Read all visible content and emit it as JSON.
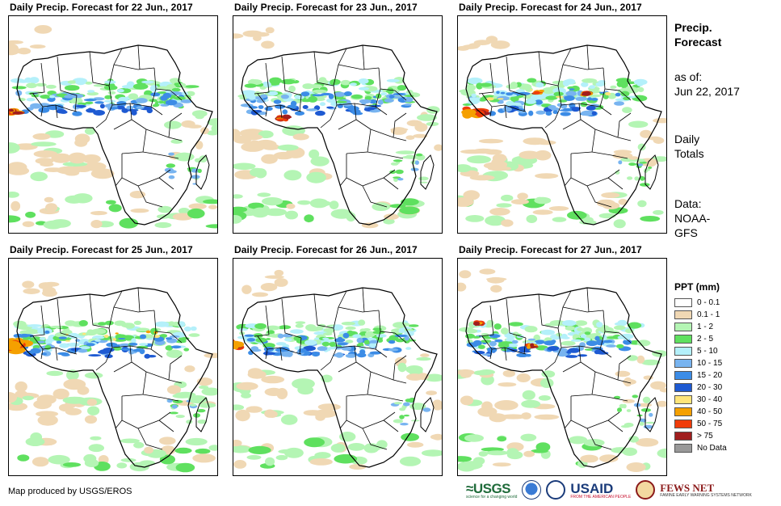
{
  "colors": {
    "p0": "#ffffff",
    "p1": "#f0d8b4",
    "p2": "#b4f5b4",
    "p3": "#5fe05f",
    "p4": "#b4f0fa",
    "p5": "#78b4f0",
    "p6": "#3c8ce6",
    "p7": "#1e5ad2",
    "p8": "#ffe57a",
    "p9": "#f5a000",
    "p10": "#f03c0a",
    "p11": "#a01e1e",
    "nodata": "#999999"
  },
  "panels": [
    {
      "title": "Daily Precip. Forecast for 22 Jun., 2017"
    },
    {
      "title": "Daily Precip. Forecast for 23 Jun., 2017"
    },
    {
      "title": "Daily Precip. Forecast for 24 Jun., 2017"
    },
    {
      "title": "Daily Precip. Forecast for 25 Jun., 2017"
    },
    {
      "title": "Daily Precip. Forecast for 26 Jun., 2017"
    },
    {
      "title": "Daily Precip. Forecast for 27 Jun., 2017"
    }
  ],
  "side": {
    "title_line1": "Precip.",
    "title_line2": "Forecast",
    "asof_line1": "as of:",
    "asof_line2": "Jun 22, 2017",
    "daily_line1": "Daily",
    "daily_line2": "Totals",
    "data_line1": "Data:",
    "data_line2": "NOAA-",
    "data_line3": "GFS"
  },
  "legend": {
    "title": "PPT (mm)",
    "items": [
      {
        "label": "0 - 0.1",
        "color": "#ffffff"
      },
      {
        "label": "0.1 - 1",
        "color": "#f0d8b4"
      },
      {
        "label": "1 - 2",
        "color": "#b4f5b4"
      },
      {
        "label": "2 - 5",
        "color": "#5fe05f"
      },
      {
        "label": "5 - 10",
        "color": "#b4f0fa"
      },
      {
        "label": "10 - 15",
        "color": "#78b4f0"
      },
      {
        "label": "15 - 20",
        "color": "#3c8ce6"
      },
      {
        "label": "20 - 30",
        "color": "#1e5ad2"
      },
      {
        "label": "30 - 40",
        "color": "#ffe57a"
      },
      {
        "label": "40 - 50",
        "color": "#f5a000"
      },
      {
        "label": "50 - 75",
        "color": "#f03c0a"
      },
      {
        "label": "> 75",
        "color": "#a01e1e"
      },
      {
        "label": "No Data",
        "color": "#999999"
      }
    ]
  },
  "footer": {
    "credit": "Map produced by USGS/EROS",
    "logo_usgs": "≈USGS",
    "logo_usgs_tag": "science for a changing world",
    "logo_usaid": "USAID",
    "logo_usaid_tag": "FROM THE AMERICAN PEOPLE",
    "logo_fews": "FEWS NET",
    "logo_fews_tag": "FAMINE EARLY WARNING SYSTEMS NETWORK"
  }
}
